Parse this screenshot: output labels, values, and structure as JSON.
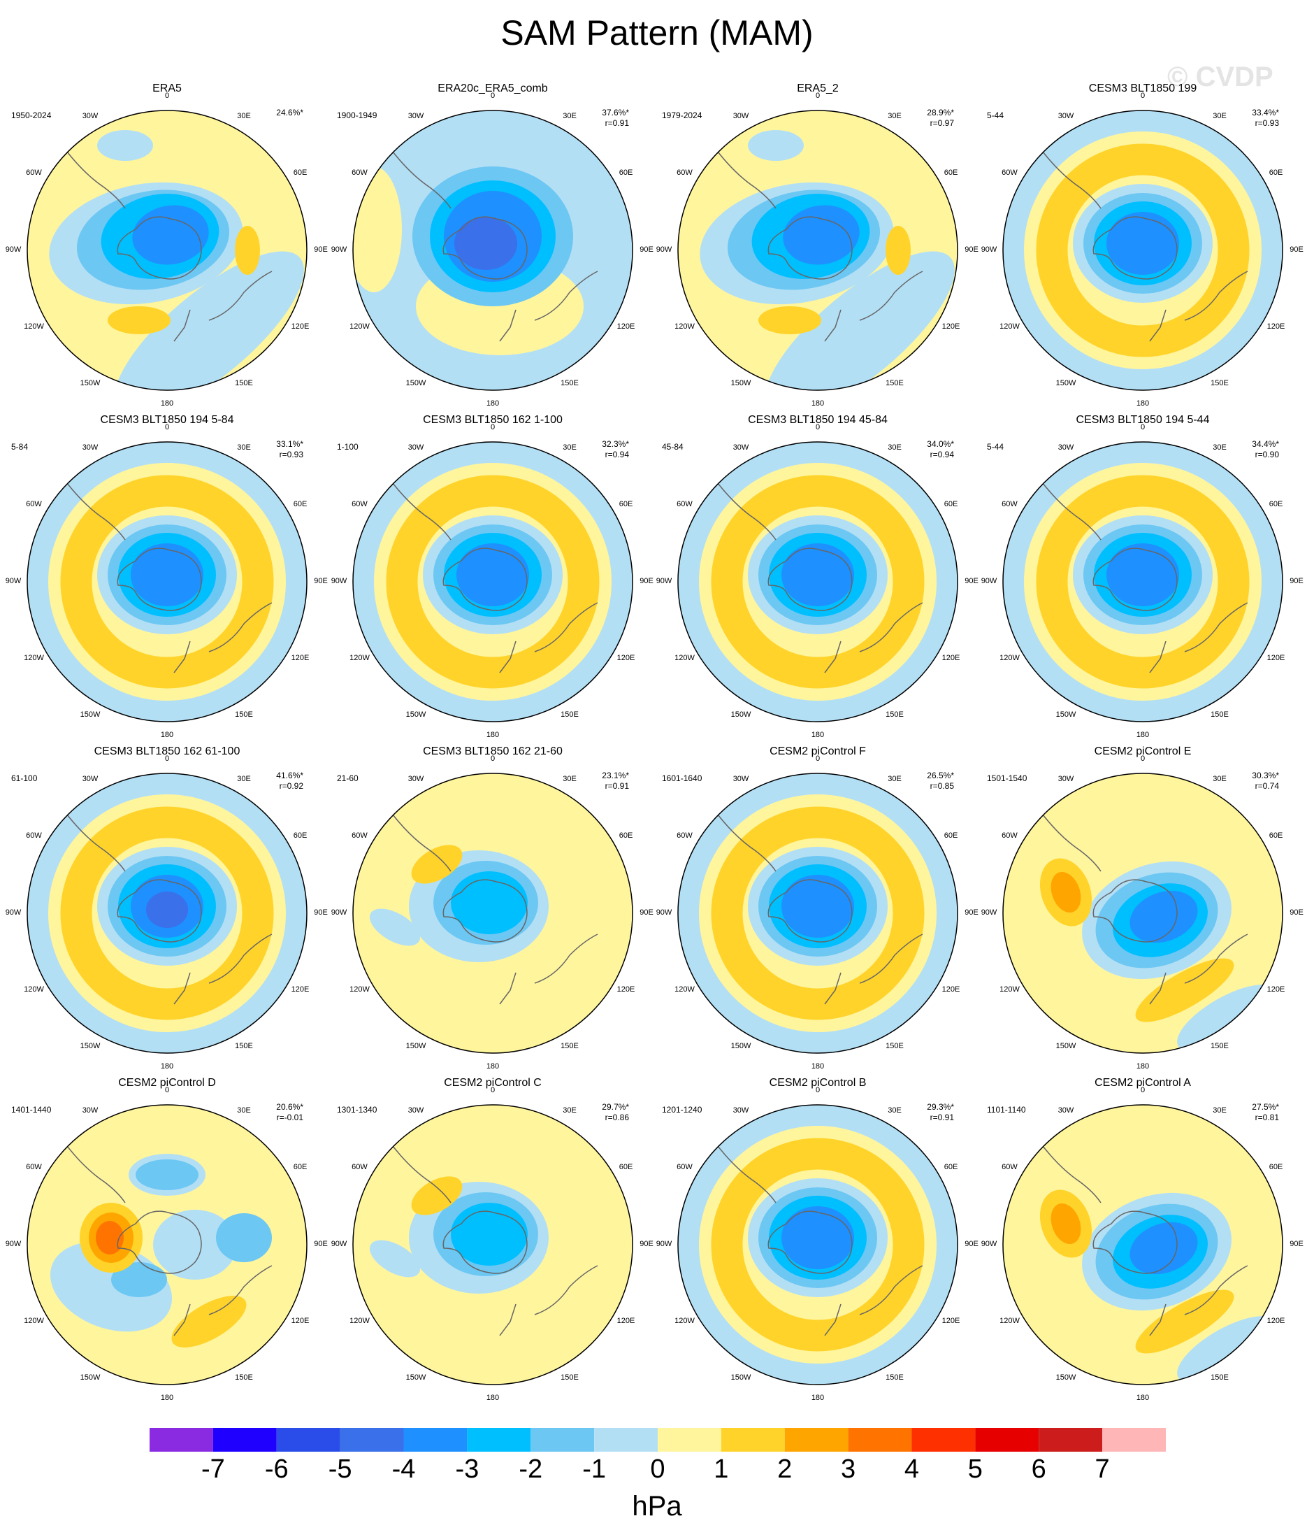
{
  "title": "SAM Pattern (MAM)",
  "watermark": "© CVDP",
  "lon_labels": [
    "0",
    "30E",
    "60E",
    "90E",
    "120E",
    "150E",
    "180",
    "150W",
    "120W",
    "90W",
    "60W",
    "30W"
  ],
  "panels": [
    {
      "title": "ERA5",
      "years": "1950-2024",
      "pct": "24.6%*",
      "r": "",
      "pattern": "era5"
    },
    {
      "title": "ERA20c_ERA5_comb",
      "years": "1900-1949",
      "pct": "37.6%*",
      "r": "r=0.91",
      "pattern": "strong"
    },
    {
      "title": "ERA5_2",
      "years": "1979-2024",
      "pct": "28.9%*",
      "r": "r=0.97",
      "pattern": "era5"
    },
    {
      "title": "CESM3 BLT1850 199",
      "years": "5-44",
      "pct": "33.4%*",
      "r": "r=0.93",
      "pattern": "ring"
    },
    {
      "title": "CESM3 BLT1850 194 5-84",
      "years": "5-84",
      "pct": "33.1%*",
      "r": "r=0.93",
      "pattern": "ring"
    },
    {
      "title": "CESM3 BLT1850 162 1-100",
      "years": "1-100",
      "pct": "32.3%*",
      "r": "r=0.94",
      "pattern": "ring"
    },
    {
      "title": "CESM3 BLT1850 194 45-84",
      "years": "45-84",
      "pct": "34.0%*",
      "r": "r=0.94",
      "pattern": "ring"
    },
    {
      "title": "CESM3 BLT1850 194 5-44",
      "years": "5-44",
      "pct": "34.4%*",
      "r": "r=0.90",
      "pattern": "ring"
    },
    {
      "title": "CESM3 BLT1850 162 61-100",
      "years": "61-100",
      "pct": "41.6%*",
      "r": "r=0.92",
      "pattern": "strongring"
    },
    {
      "title": "CESM3 BLT1850 162 21-60",
      "years": "21-60",
      "pct": "23.1%*",
      "r": "r=0.91",
      "pattern": "weak"
    },
    {
      "title": "CESM2 piControl F",
      "years": "1601-1640",
      "pct": "26.5%*",
      "r": "r=0.85",
      "pattern": "ring"
    },
    {
      "title": "CESM2 piControl E",
      "years": "1501-1540",
      "pct": "30.3%*",
      "r": "r=0.74",
      "pattern": "offset"
    },
    {
      "title": "CESM2 piControl D",
      "years": "1401-1440",
      "pct": "20.6%*",
      "r": "r=-0.01",
      "pattern": "anomalous"
    },
    {
      "title": "CESM2 piControl C",
      "years": "1301-1340",
      "pct": "29.7%*",
      "r": "r=0.86",
      "pattern": "weak"
    },
    {
      "title": "CESM2 piControl B",
      "years": "1201-1240",
      "pct": "29.3%*",
      "r": "r=0.91",
      "pattern": "ring"
    },
    {
      "title": "CESM2 piControl A",
      "years": "1101-1140",
      "pct": "27.5%*",
      "r": "r=0.81",
      "pattern": "offset"
    }
  ],
  "colorbar": {
    "units": "hPa",
    "labels": [
      "-7",
      "-6",
      "-5",
      "-4",
      "-3",
      "-2",
      "-1",
      "0",
      "1",
      "2",
      "3",
      "4",
      "5",
      "6",
      "7"
    ],
    "colors": [
      "#8a2be2",
      "#1f00ff",
      "#2a4ce8",
      "#3a70ea",
      "#1e90ff",
      "#00bfff",
      "#6cc7f3",
      "#b3dff5",
      "#fff59d",
      "#ffd32a",
      "#ffa500",
      "#ff7400",
      "#ff3000",
      "#e60000",
      "#cd1c1c",
      "#ffb6b6"
    ]
  },
  "level_colors": {
    "neg5": "#2a4ce8",
    "neg4": "#3a70ea",
    "neg3": "#1e90ff",
    "neg2": "#00bfff",
    "neg1": "#6cc7f3",
    "neg0": "#b3dff5",
    "pos0": "#fff59d",
    "pos1": "#ffd32a",
    "pos2": "#ffa500",
    "pos3": "#ff7400"
  }
}
